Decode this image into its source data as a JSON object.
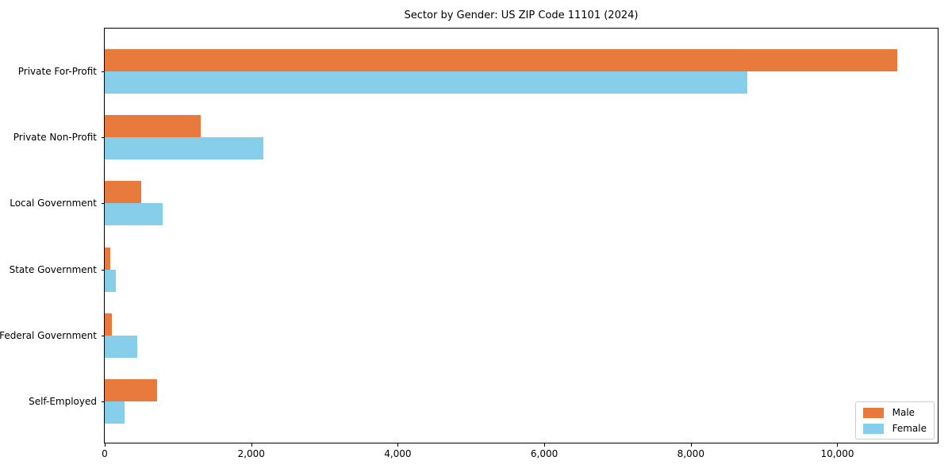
{
  "chart_data": {
    "type": "bar",
    "orientation": "horizontal",
    "title": "Sector by Gender: US ZIP Code 11101 (2024)",
    "xlabel": "",
    "ylabel": "",
    "grid": false,
    "legend_position": "lower right",
    "categories": [
      "Private For-Profit",
      "Private Non-Profit",
      "Local Government",
      "State Government",
      "Federal Government",
      "Self-Employed"
    ],
    "series": [
      {
        "name": "Male",
        "color": "#e87a3d",
        "values": [
          10820,
          1310,
          500,
          80,
          100,
          710
        ]
      },
      {
        "name": "Female",
        "color": "#87ceeb",
        "values": [
          8770,
          2170,
          790,
          150,
          445,
          270
        ]
      }
    ],
    "xlim": [
      0,
      11370
    ],
    "x_ticks": [
      0,
      2000,
      4000,
      6000,
      8000,
      10000
    ],
    "x_tick_labels": [
      "0",
      "2,000",
      "4,000",
      "6,000",
      "8,000",
      "10,000"
    ],
    "colors": {
      "male": "#e87a3d",
      "female": "#87ceeb",
      "axis": "#000000",
      "legend_border": "#cccccc",
      "background": "#ffffff"
    }
  }
}
